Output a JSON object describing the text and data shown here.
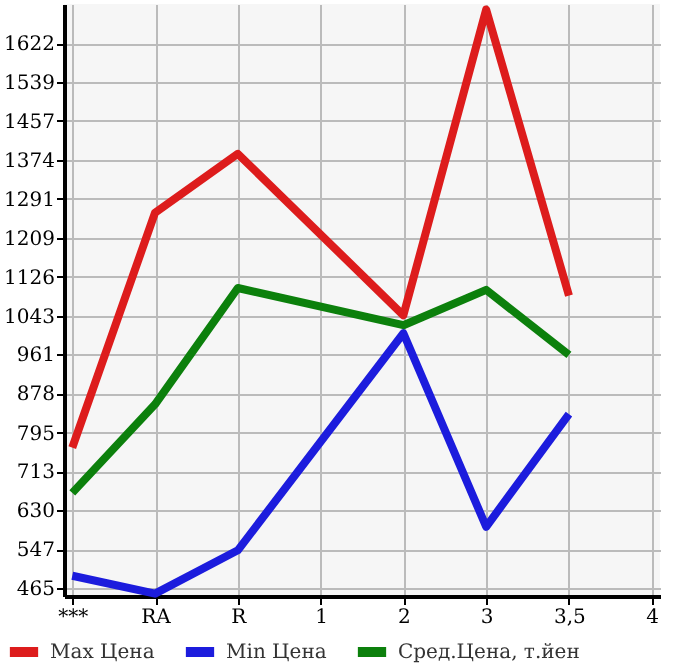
{
  "chart_data": {
    "type": "line",
    "categories": [
      "***",
      "RA",
      "R",
      "1",
      "2",
      "3",
      "3,5",
      "4"
    ],
    "series": [
      {
        "name": "Max Цена",
        "color": "#dd1c1c",
        "values": [
          763,
          1262,
          1387,
          null,
          1044,
          1693,
          1086,
          null
        ]
      },
      {
        "name": "Min Цена",
        "color": "#1c1cdd",
        "values": [
          491,
          453,
          545,
          null,
          1006,
          595,
          834,
          null
        ]
      },
      {
        "name": "Сред.Цена, т.йен",
        "color": "#0c800c",
        "values": [
          667,
          855,
          1102,
          null,
          1023,
          1098,
          960,
          null
        ]
      }
    ],
    "ylim": [
      448,
      1705
    ],
    "yticks": [
      465,
      547,
      630,
      713,
      795,
      878,
      961,
      1043,
      1126,
      1209,
      1291,
      1374,
      1457,
      1539,
      1622
    ],
    "grid": true,
    "legend": "bottom",
    "marker": "none",
    "line_style": "solid"
  }
}
